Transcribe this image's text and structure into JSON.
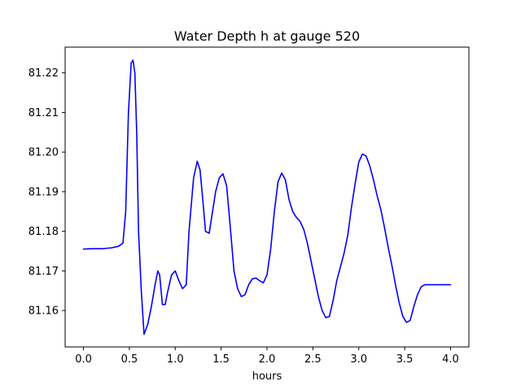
{
  "chart_data": {
    "type": "line",
    "title": "Water Depth h at gauge 520",
    "xlabel": "hours",
    "ylabel": "",
    "xlim": [
      -0.2,
      4.2
    ],
    "ylim": [
      81.1508,
      81.2265
    ],
    "xticks": [
      0.0,
      0.5,
      1.0,
      1.5,
      2.0,
      2.5,
      3.0,
      3.5,
      4.0
    ],
    "xtick_labels": [
      "0.0",
      "0.5",
      "1.0",
      "1.5",
      "2.0",
      "2.5",
      "3.0",
      "3.5",
      "4.0"
    ],
    "yticks": [
      81.16,
      81.17,
      81.18,
      81.19,
      81.2,
      81.21,
      81.22
    ],
    "ytick_labels": [
      "81.16",
      "81.17",
      "81.18",
      "81.19",
      "81.20",
      "81.21",
      "81.22"
    ],
    "grid": false,
    "series": [
      {
        "name": "h",
        "color": "#0000ff",
        "x": [
          0.0,
          0.1,
          0.2,
          0.3,
          0.38,
          0.43,
          0.46,
          0.49,
          0.52,
          0.54,
          0.56,
          0.58,
          0.6,
          0.63,
          0.66,
          0.7,
          0.74,
          0.78,
          0.81,
          0.83,
          0.86,
          0.89,
          0.92,
          0.96,
          1.0,
          1.04,
          1.08,
          1.12,
          1.15,
          1.2,
          1.24,
          1.27,
          1.3,
          1.33,
          1.37,
          1.4,
          1.44,
          1.48,
          1.52,
          1.56,
          1.6,
          1.64,
          1.68,
          1.72,
          1.76,
          1.8,
          1.84,
          1.88,
          1.92,
          1.96,
          2.0,
          2.04,
          2.08,
          2.12,
          2.16,
          2.2,
          2.24,
          2.28,
          2.32,
          2.36,
          2.4,
          2.44,
          2.48,
          2.52,
          2.56,
          2.6,
          2.64,
          2.68,
          2.72,
          2.76,
          2.8,
          2.84,
          2.88,
          2.92,
          2.96,
          3.0,
          3.04,
          3.08,
          3.12,
          3.16,
          3.2,
          3.24,
          3.28,
          3.32,
          3.36,
          3.4,
          3.44,
          3.48,
          3.52,
          3.56,
          3.6,
          3.64,
          3.68,
          3.72,
          3.76,
          3.8,
          3.84,
          3.88,
          3.92,
          3.96,
          4.0
        ],
        "y": [
          81.1755,
          81.1756,
          81.1756,
          81.1758,
          81.1762,
          81.177,
          81.185,
          81.21,
          81.2225,
          81.2232,
          81.22,
          81.205,
          81.18,
          81.165,
          81.154,
          81.1565,
          81.161,
          81.1665,
          81.17,
          81.169,
          81.1615,
          81.1615,
          81.165,
          81.169,
          81.17,
          81.1675,
          81.1655,
          81.1665,
          81.18,
          81.1935,
          81.1977,
          81.1955,
          81.188,
          81.18,
          81.1795,
          81.184,
          81.19,
          81.1935,
          81.1945,
          81.1915,
          81.181,
          81.17,
          81.1655,
          81.1635,
          81.164,
          81.1665,
          81.168,
          81.1682,
          81.1675,
          81.167,
          81.169,
          81.1755,
          81.185,
          81.1925,
          81.1947,
          81.193,
          81.188,
          81.185,
          81.1835,
          81.1825,
          81.1805,
          81.177,
          81.1725,
          81.168,
          81.1635,
          81.16,
          81.1582,
          81.1585,
          81.1625,
          81.1675,
          81.171,
          81.1745,
          81.179,
          81.186,
          81.192,
          81.1975,
          81.1995,
          81.199,
          81.1965,
          81.193,
          81.189,
          81.1855,
          81.181,
          81.176,
          81.1715,
          81.1665,
          81.162,
          81.1585,
          81.157,
          81.1575,
          81.161,
          81.164,
          81.166,
          81.1665,
          81.1665,
          81.1665,
          81.1665,
          81.1665,
          81.1665,
          81.1665,
          81.1665
        ]
      }
    ]
  }
}
